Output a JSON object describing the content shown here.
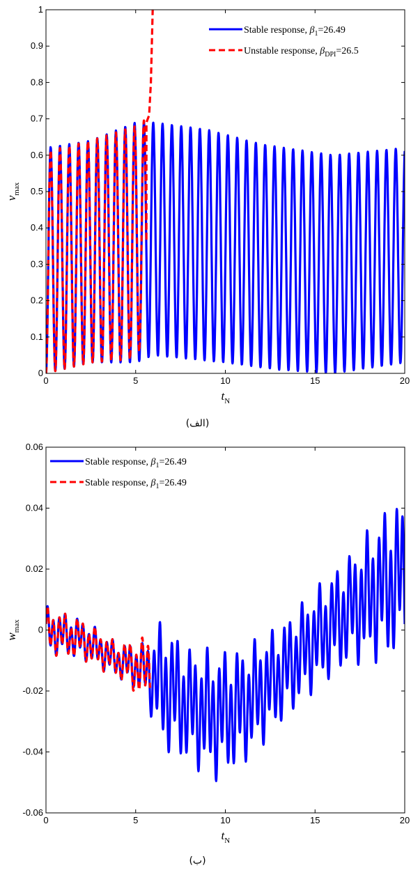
{
  "chart_data": [
    {
      "type": "line",
      "caption": "(الف)",
      "xlabel": {
        "main": "t",
        "sub": "N"
      },
      "ylabel": {
        "main": "v",
        "sub": "max"
      },
      "xlim": [
        0,
        20
      ],
      "ylim": [
        0,
        1
      ],
      "xticks": [
        "0",
        "5",
        "10",
        "15",
        "20"
      ],
      "yticks": [
        "0",
        "0.1",
        "0.2",
        "0.3",
        "0.4",
        "0.5",
        "0.6",
        "0.7",
        "0.8",
        "0.9",
        "1"
      ],
      "grid": false,
      "legend_position": "top-right",
      "series": [
        {
          "name": "Stable response, β1=26.49",
          "legend": {
            "text": "Stable response, ",
            "sym": "β",
            "sub": "1",
            "tail": "=26.49"
          },
          "color": "#0000ff",
          "style": "solid",
          "x_range": [
            0,
            20
          ],
          "period": 0.52,
          "peaks": [
            [
              0,
              0.62
            ],
            [
              2.5,
              0.64
            ],
            [
              5,
              0.69
            ],
            [
              6,
              0.69
            ],
            [
              9,
              0.67
            ],
            [
              12,
              0.63
            ],
            [
              16,
              0.6
            ],
            [
              20,
              0.62
            ]
          ],
          "troughs": [
            [
              0,
              0.0
            ],
            [
              2.5,
              0.03
            ],
            [
              5,
              0.03
            ],
            [
              6,
              0.05
            ],
            [
              10,
              0.03
            ],
            [
              13,
              0.01
            ],
            [
              16,
              0.0
            ],
            [
              20,
              0.03
            ]
          ]
        },
        {
          "name": "Unstable response, βDPI=26.5",
          "legend": {
            "text": "Unstable response, ",
            "sym": "β",
            "sub": "DPI",
            "tail": "=26.5"
          },
          "color": "#ff0000",
          "style": "dashed",
          "x_range": [
            0,
            5.6
          ],
          "period": 0.52,
          "peaks": [
            [
              0,
              0.61
            ],
            [
              2.5,
              0.64
            ],
            [
              5,
              0.68
            ],
            [
              5.6,
              0.7
            ]
          ],
          "troughs": [
            [
              0,
              0.0
            ],
            [
              2.5,
              0.03
            ],
            [
              5,
              0.04
            ],
            [
              5.6,
              0.1
            ]
          ],
          "tail": [
            [
              5.6,
              0.69
            ],
            [
              5.75,
              0.71
            ],
            [
              5.85,
              0.8
            ],
            [
              5.95,
              1.0
            ]
          ]
        }
      ]
    },
    {
      "type": "line",
      "caption": "(ب)",
      "xlabel": {
        "main": "t",
        "sub": "N"
      },
      "ylabel": {
        "main": "w",
        "sub": "max"
      },
      "xlim": [
        0,
        20
      ],
      "ylim": [
        -0.06,
        0.06
      ],
      "xticks": [
        "0",
        "5",
        "10",
        "15",
        "20"
      ],
      "yticks": [
        "-0.06",
        "-0.04",
        "-0.02",
        "0",
        "0.02",
        "0.04",
        "0.06"
      ],
      "grid": false,
      "legend_position": "top-left",
      "series": [
        {
          "name": "Stable response, β1=26.49",
          "legend": {
            "text": "Stable response, ",
            "sym": "β",
            "sub": "1",
            "tail": "=26.49"
          },
          "color": "#0000ff",
          "style": "solid",
          "x_range": [
            0,
            20
          ],
          "period": 0.33,
          "center": [
            [
              0,
              0.0
            ],
            [
              2,
              -0.003
            ],
            [
              4,
              -0.01
            ],
            [
              5.5,
              -0.013
            ],
            [
              6.5,
              -0.018
            ],
            [
              8,
              -0.025
            ],
            [
              9.5,
              -0.028
            ],
            [
              11,
              -0.025
            ],
            [
              13,
              -0.015
            ],
            [
              15,
              -0.003
            ],
            [
              17,
              0.007
            ],
            [
              19,
              0.015
            ],
            [
              20,
              0.018
            ]
          ],
          "amp": [
            [
              0,
              0.008
            ],
            [
              2,
              0.007
            ],
            [
              4,
              0.006
            ],
            [
              5.5,
              0.009
            ],
            [
              6.5,
              0.022
            ],
            [
              8,
              0.02
            ],
            [
              9.5,
              0.022
            ],
            [
              11,
              0.02
            ],
            [
              13,
              0.017
            ],
            [
              15,
              0.017
            ],
            [
              17,
              0.019
            ],
            [
              19,
              0.026
            ],
            [
              20,
              0.026
            ]
          ]
        },
        {
          "name": "Stable response, β1=26.49",
          "legend": {
            "text": "Stable response, ",
            "sym": "β",
            "sub": "1",
            "tail": "=26.49"
          },
          "color": "#ff0000",
          "style": "dashed",
          "x_range": [
            0,
            5.8
          ],
          "period": 0.33,
          "center": [
            [
              0,
              0.0
            ],
            [
              2,
              -0.003
            ],
            [
              4,
              -0.01
            ],
            [
              5.5,
              -0.013
            ],
            [
              5.8,
              -0.012
            ]
          ],
          "amp": [
            [
              0,
              0.008
            ],
            [
              2,
              0.007
            ],
            [
              4,
              0.006
            ],
            [
              5.5,
              0.011
            ],
            [
              5.8,
              0.012
            ]
          ]
        }
      ]
    }
  ]
}
